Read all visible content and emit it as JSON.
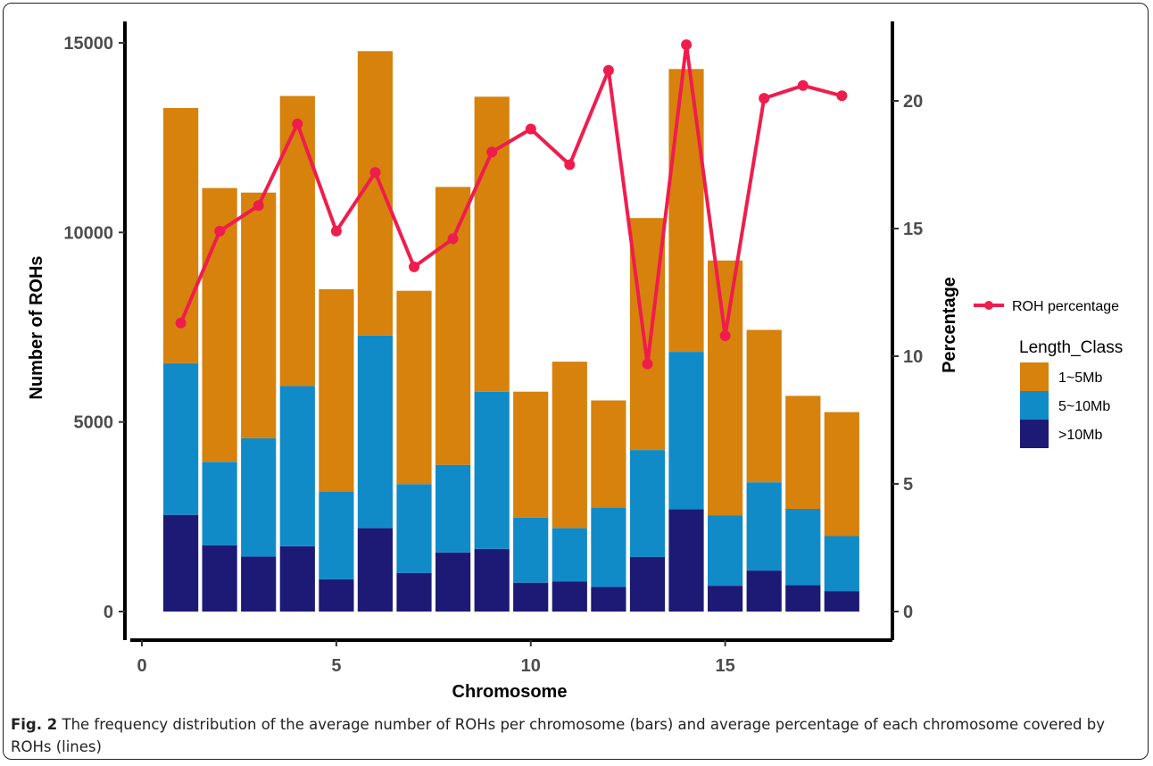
{
  "chart_data": {
    "type": "bar",
    "stacked": true,
    "x": [
      1,
      2,
      3,
      4,
      5,
      6,
      7,
      8,
      9,
      10,
      11,
      12,
      13,
      14,
      15,
      16,
      17,
      18
    ],
    "series": [
      {
        "name": ">10Mb",
        "color": "#1d1a75",
        "values": [
          2550,
          1750,
          1450,
          1720,
          850,
          2200,
          1020,
          1560,
          1650,
          760,
          790,
          650,
          1440,
          2700,
          680,
          1080,
          700,
          540
        ]
      },
      {
        "name": "5~10Mb",
        "color": "#118bc8",
        "values": [
          4000,
          2200,
          3120,
          4230,
          2320,
          5080,
          2340,
          2310,
          4150,
          1720,
          1410,
          2090,
          2820,
          4150,
          1860,
          2330,
          2010,
          1450
        ]
      },
      {
        "name": "1~5Mb",
        "color": "#d6820d",
        "values": [
          6730,
          7220,
          6480,
          7650,
          5330,
          7500,
          5100,
          7330,
          7780,
          3320,
          4390,
          2830,
          6120,
          7460,
          6720,
          4020,
          2980,
          3270
        ]
      }
    ],
    "line_series": {
      "name": "ROH percentage",
      "color": "#ef1d4d",
      "axis": "right",
      "values": [
        11.3,
        14.9,
        15.9,
        19.1,
        14.9,
        17.2,
        13.5,
        14.6,
        18.0,
        18.9,
        17.5,
        21.2,
        9.7,
        22.2,
        10.8,
        20.1,
        20.6,
        20.2
      ]
    },
    "xlabel": "Chromosome",
    "ylabel": "Number of ROHs",
    "y2label": "Percentage",
    "xlim": [
      0,
      18.6
    ],
    "ylim": [
      0,
      15500
    ],
    "y2lim": [
      0,
      22.7
    ],
    "xticks": [
      "0",
      "5",
      "10",
      "15"
    ],
    "yticks": [
      "0",
      "5000",
      "10000",
      "15000"
    ],
    "y2ticks": [
      "0",
      "5",
      "10",
      "15",
      "20"
    ],
    "legend_title": "Length_Class",
    "legend_position": "right",
    "grid": false
  },
  "caption": {
    "label": "Fig. 2",
    "text": "The frequency distribution of the average number of ROHs per chromosome (bars) and average percentage of each chromosome covered by ROHs (lines)"
  }
}
